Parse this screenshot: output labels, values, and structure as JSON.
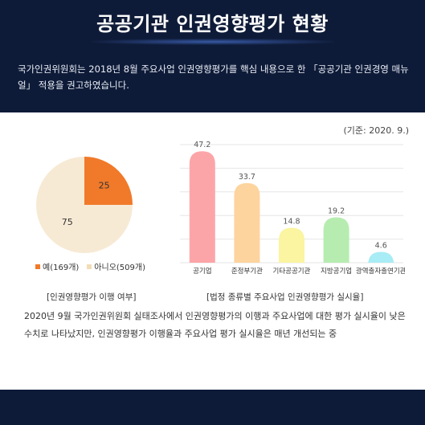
{
  "header": {
    "title": "공공기관 인권영향평가 현황",
    "intro": "국가인권위원회는 2018년 8월 주요사업 인권영향평가를 핵심 내용으로 한 「공공기관 인권경영 매뉴얼」 적용을 권고하였습니다."
  },
  "basis_date": "(기준: 2020. 9.)",
  "pie_caption": "[인권영향평가 이행 여부]",
  "bar_caption": "[법정 종류별 주요사업 인권영향평가 실시율]",
  "summary": "2020년 9월 국가인권위원회 실태조사에서 인권영향평가의 이행과 주요사업에 대한 평가 실시율이 낮은 수치로 나타났지만, 인권영향평가 이행율과 주요사업 평가 실시율은 매년 개선되는 중",
  "colors": {
    "background": "#0e1b38",
    "pie_yes": "#f07a2a",
    "pie_no": "#f7ead5"
  },
  "chart_data": [
    {
      "type": "pie",
      "slices": [
        {
          "label": "예(169개)",
          "value": 25,
          "color": "#f07a2a"
        },
        {
          "label": "아니오(509개)",
          "value": 75,
          "color": "#f7ead5"
        }
      ]
    },
    {
      "type": "bar",
      "categories": [
        "공기업",
        "준정부기관",
        "기타공공기관",
        "지방공기업",
        "광역출자출연기관"
      ],
      "values": [
        47.2,
        33.7,
        14.8,
        19.2,
        4.6
      ],
      "colors": [
        "#fca5a8",
        "#fdd49e",
        "#fbf4a1",
        "#b6ecb0",
        "#a8ecf5"
      ],
      "ylim": [
        0,
        50
      ],
      "grid": true
    }
  ]
}
